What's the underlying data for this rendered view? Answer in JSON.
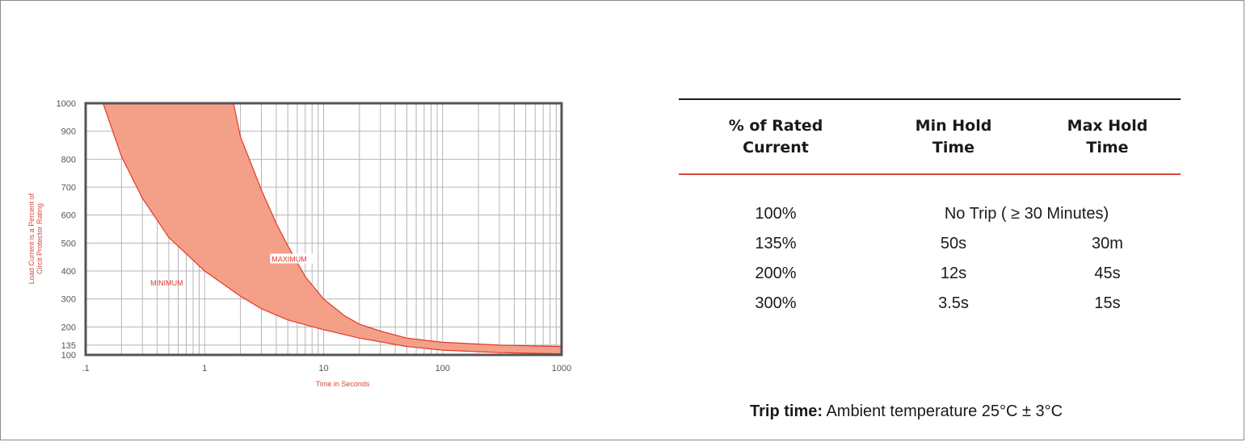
{
  "chart_data": {
    "type": "area",
    "title": "",
    "xlabel": "Time in Seconds",
    "ylabel": "Load Current is a Percent of Circit Protector Rating",
    "ylabel_lines": [
      "Load Current is a Percent of",
      "Circit Protector Rating"
    ],
    "x_scale": "log",
    "xlim": [
      0.1,
      1000
    ],
    "ylim": [
      100,
      1000
    ],
    "x_tick_labels": [
      ".1",
      "1",
      "10",
      "100",
      "1000"
    ],
    "y_tick_labels": [
      "1000",
      "900",
      "800",
      "700",
      "600",
      "500",
      "400",
      "300",
      "200",
      "135",
      "100"
    ],
    "grid": true,
    "series": [
      {
        "name": "MINIMUM",
        "x": [
          0.14,
          0.2,
          0.3,
          0.5,
          1,
          2,
          3,
          5,
          10,
          20,
          50,
          100,
          300,
          1000
        ],
        "y": [
          1000,
          810,
          660,
          520,
          400,
          310,
          265,
          225,
          190,
          160,
          130,
          117,
          108,
          104
        ]
      },
      {
        "name": "MAXIMUM",
        "x": [
          1.75,
          2,
          3,
          4,
          5,
          7,
          10,
          15,
          20,
          30,
          50,
          100,
          300,
          1000
        ],
        "y": [
          1000,
          880,
          690,
          570,
          490,
          380,
          300,
          240,
          210,
          185,
          160,
          145,
          135,
          130
        ]
      }
    ],
    "colors": {
      "band": "#f4a088",
      "curve": "#e3392b",
      "grid": "#b5b5b5",
      "frame": "#555555",
      "label": "#d9463a"
    }
  },
  "table": {
    "headers": [
      {
        "line1": "% of Rated",
        "line2": "Current"
      },
      {
        "line1": "Min Hold",
        "line2": "Time"
      },
      {
        "line1": "Max Hold",
        "line2": "Time"
      }
    ],
    "first_row": {
      "pct": "100%",
      "note": "No Trip ( ≥ 30 Minutes)"
    },
    "rows": [
      {
        "pct": "135%",
        "min": "50s",
        "max": "30m"
      },
      {
        "pct": "200%",
        "min": "12s",
        "max": "45s"
      },
      {
        "pct": "300%",
        "min": "3.5s",
        "max": "15s"
      }
    ]
  },
  "note": {
    "label": "Trip time:",
    "text": " Ambient temperature 25°C ± 3°C"
  }
}
